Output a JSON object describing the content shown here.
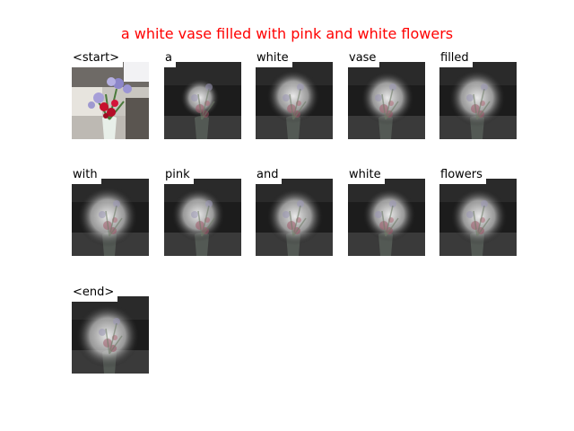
{
  "caption": "a white vase filled with pink and white flowers",
  "colors": {
    "caption": "#ff0000",
    "background": "#ffffff"
  },
  "panels": [
    {
      "word": "<start>",
      "image": "original-photo"
    },
    {
      "word": "a",
      "image": "attention-map"
    },
    {
      "word": "white",
      "image": "attention-map"
    },
    {
      "word": "vase",
      "image": "attention-map"
    },
    {
      "word": "filled",
      "image": "attention-map"
    },
    {
      "word": "with",
      "image": "attention-map"
    },
    {
      "word": "pink",
      "image": "attention-map"
    },
    {
      "word": "and",
      "image": "attention-map"
    },
    {
      "word": "white",
      "image": "attention-map"
    },
    {
      "word": "flowers",
      "image": "attention-map"
    },
    {
      "word": "<end>",
      "image": "attention-map"
    }
  ]
}
